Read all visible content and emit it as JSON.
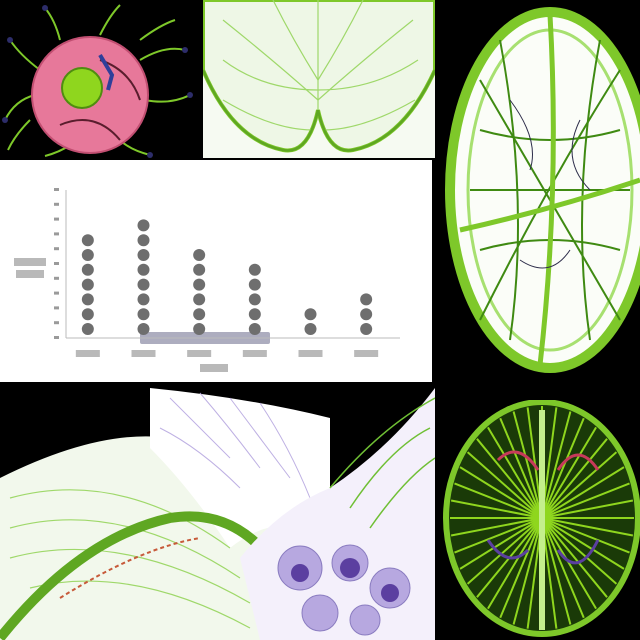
{
  "colors": {
    "background": "#000000",
    "tissue_green": "#7ec82a",
    "dark_green": "#3f8a12",
    "cell_pink": "#e7789a",
    "nucleus_green": "#8fd61e",
    "tissue_lavender": "#b7a8e0",
    "chart_bg": "#ffffff",
    "dot": "#6e6e6e"
  },
  "panels": {
    "top_left_icon": "cell-illustration-icon",
    "top_center_icon": "leaf-vascular-tissue-icon",
    "right_top_icon": "oval-vein-network-icon",
    "bottom_left_icon": "folded-tissue-icon",
    "bottom_center_icon": "lavender-cell-cluster-icon",
    "bottom_right_icon": "radial-vein-disc-icon"
  },
  "chart_data": {
    "type": "scatter",
    "style": "stacked-dot columns",
    "title": "",
    "xlabel": "",
    "ylabel": "",
    "categories": [
      "",
      "",
      "",
      "",
      "",
      ""
    ],
    "values": [
      7,
      8,
      6,
      5,
      2,
      3
    ],
    "ylim": [
      0,
      10
    ],
    "grid": false,
    "legend": "none"
  }
}
